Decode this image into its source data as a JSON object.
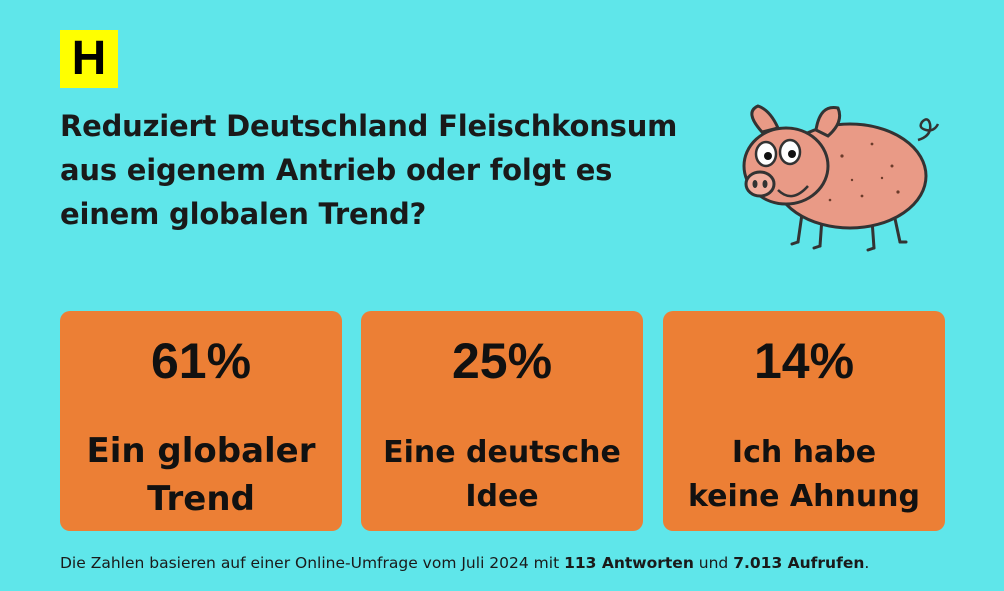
{
  "logo": {
    "letter": "H"
  },
  "question": {
    "line1": "Reduziert Deutschland Fleischkonsum",
    "line2": "aus eigenem Antrieb oder folgt es",
    "line3": "einem globalen Trend?"
  },
  "results": [
    {
      "percent": "61%",
      "value": 61,
      "line1": "Ein globaler",
      "line2": "Trend"
    },
    {
      "percent": "25%",
      "value": 25,
      "line1": "Eine deutsche",
      "line2": "Idee"
    },
    {
      "percent": "14%",
      "value": 14,
      "line1": "Ich habe",
      "line2": "keine Ahnung"
    }
  ],
  "footer": {
    "prefix": "Die Zahlen basieren auf einer Online-Umfrage vom Juli 2024 mit ",
    "answers": "113 Antworten",
    "middle": " und ",
    "views": "7.013 Aufrufen",
    "suffix": "."
  },
  "colors": {
    "background": "#5fe6ea",
    "card": "#ec7f35",
    "logo": "#ffff00",
    "pig": "#e99a86"
  },
  "illustration": {
    "icon": "pig-icon"
  }
}
